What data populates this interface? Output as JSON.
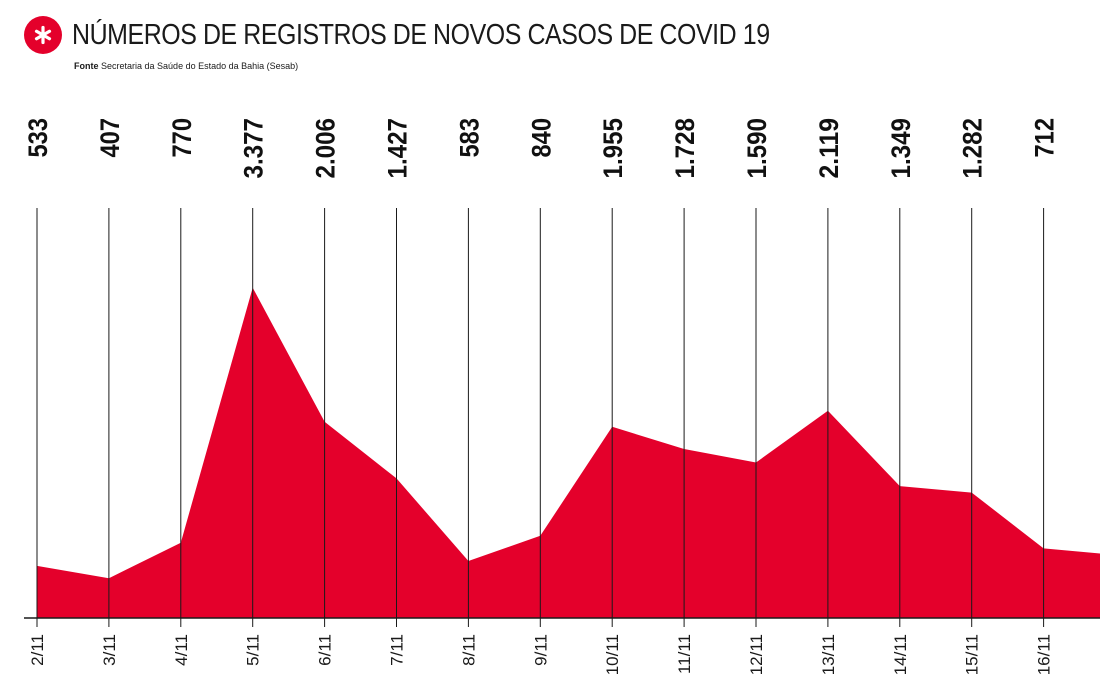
{
  "header": {
    "title": "NÚMEROS DE REGISTROS DE NOVOS CASOS DE COVID 19",
    "source_label": "Fonte",
    "source_text": "Secretaria da Saúde do Estado da Bahia (Sesab)",
    "icon": "asterisk-icon"
  },
  "colors": {
    "accent": "#e4002b",
    "axis": "#1a1a1a",
    "gridline": "#1a1a1a"
  },
  "chart_data": {
    "type": "area",
    "title": "NÚMEROS DE REGISTROS DE NOVOS CASOS DE COVID 19",
    "xlabel": "",
    "ylabel": "",
    "categories": [
      "2/11",
      "3/11",
      "4/11",
      "5/11",
      "6/11",
      "7/11",
      "8/11",
      "9/11",
      "10/11",
      "11/11",
      "12/11",
      "13/11",
      "14/11",
      "15/11",
      "16/11"
    ],
    "value_labels": [
      "533",
      "407",
      "770",
      "3.377",
      "2.006",
      "1.427",
      "583",
      "840",
      "1.955",
      "1.728",
      "1.590",
      "2.119",
      "1.349",
      "1.282",
      "712"
    ],
    "values": [
      533,
      407,
      770,
      3377,
      2006,
      1427,
      583,
      840,
      1955,
      1728,
      1590,
      2119,
      1349,
      1282,
      712
    ],
    "trailing_value": 660,
    "ylim": [
      0,
      4200
    ],
    "grid": "vertical",
    "legend": "none"
  }
}
